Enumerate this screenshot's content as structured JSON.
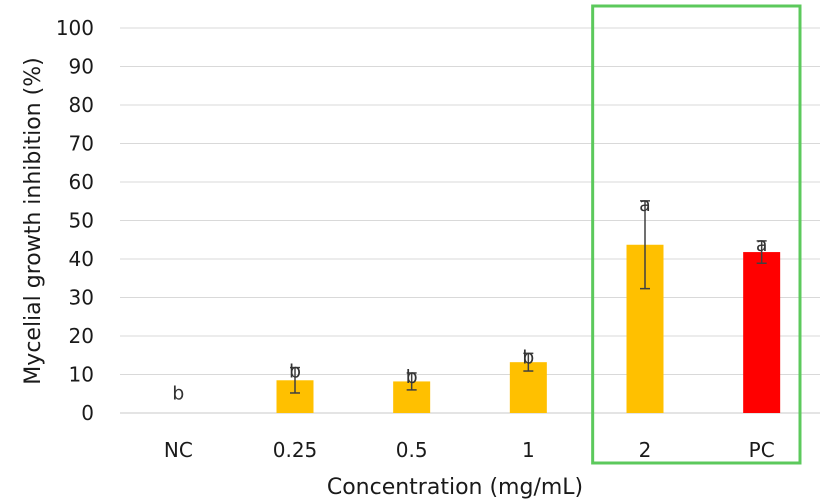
{
  "chart_data": {
    "type": "bar",
    "xlabel": "Concentration (mg/mL)",
    "ylabel": "Mycelial growth inhibition (%)",
    "ylim": [
      0,
      100
    ],
    "yticks": [
      0,
      10,
      20,
      30,
      40,
      50,
      60,
      70,
      80,
      90,
      100
    ],
    "grid": "horizontal",
    "categories": [
      "NC",
      "0.25",
      "0.5",
      "1",
      "2",
      "PC"
    ],
    "values": [
      0,
      8.5,
      8.2,
      13.2,
      43.7,
      41.8
    ],
    "errors": [
      0,
      3.3,
      2.2,
      2.3,
      11.4,
      2.9
    ],
    "significance_letters": [
      "b",
      "b",
      "b",
      "b",
      "a",
      "a"
    ],
    "bar_colors": [
      "#FFC000",
      "#FFC000",
      "#FFC000",
      "#FFC000",
      "#FFC000",
      "#FF0000"
    ],
    "highlighted_categories": [
      "2",
      "PC"
    ],
    "highlight_color": "#5CC95C"
  }
}
